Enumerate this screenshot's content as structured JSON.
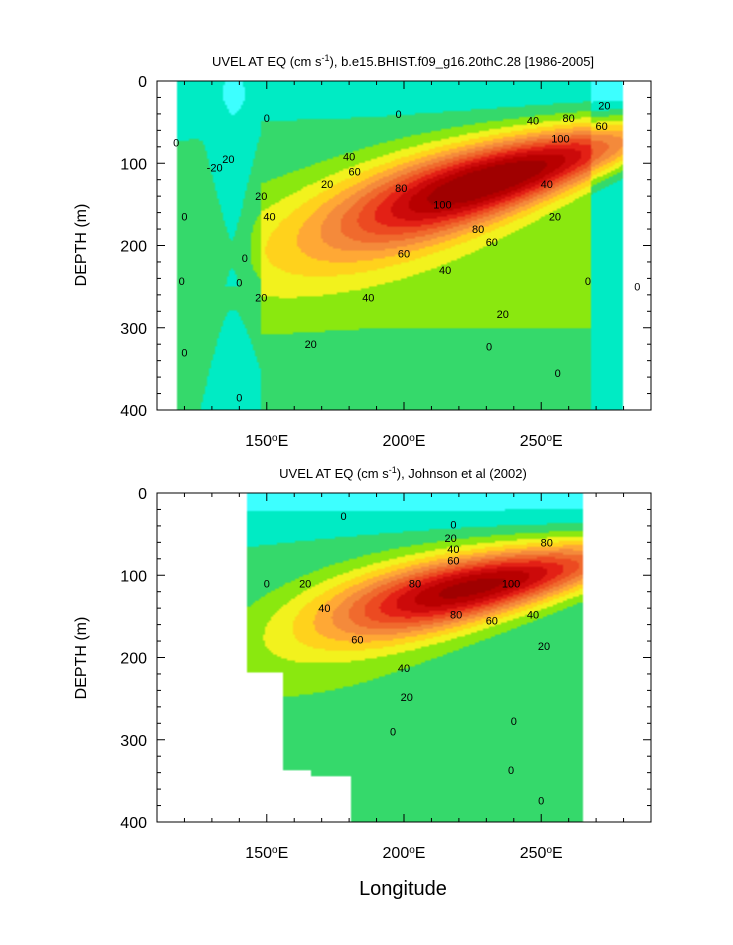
{
  "figure": {
    "xlabel": "Longitude"
  },
  "chart_data": [
    {
      "type": "contour",
      "title": "UVEL AT EQ (cm s^-1), b.e15.BHIST.f09_g16.20thC.28 [1986-2005]",
      "title_parts": [
        "UVEL AT EQ (cm s",
        "-1",
        "), b.e15.BHIST.f09_g16.20thC.28 [1986-2005]"
      ],
      "ylabel": "DEPTH (m)",
      "xlim": [
        110,
        290
      ],
      "ylim": [
        400,
        0
      ],
      "xticks": [
        {
          "v": 150,
          "t": "150"
        },
        {
          "v": 200,
          "t": "200"
        },
        {
          "v": 250,
          "t": "250"
        }
      ],
      "tick_suffix": [
        "o",
        "E"
      ],
      "yticks": [
        {
          "v": 0,
          "t": "0"
        },
        {
          "v": 100,
          "t": "100"
        },
        {
          "v": 200,
          "t": "200"
        },
        {
          "v": 300,
          "t": "300"
        },
        {
          "v": 400,
          "t": "400"
        }
      ],
      "contour_interval": 10,
      "field": {
        "x": [
          117,
          280
        ],
        "core": {
          "lon": 232,
          "depth": 120,
          "max": 120
        },
        "west_lon": 142,
        "east_lon": 272
      },
      "contour_labels": [
        {
          "lon": 136,
          "depth": 95,
          "t": "20"
        },
        {
          "lon": 148,
          "depth": 140,
          "t": "20"
        },
        {
          "lon": 151,
          "depth": 165,
          "t": "40"
        },
        {
          "lon": 148,
          "depth": 263,
          "t": "20"
        },
        {
          "lon": 172,
          "depth": 125,
          "t": "20"
        },
        {
          "lon": 180,
          "depth": 92,
          "t": "40"
        },
        {
          "lon": 182,
          "depth": 110,
          "t": "60"
        },
        {
          "lon": 199,
          "depth": 130,
          "t": "80"
        },
        {
          "lon": 214,
          "depth": 150,
          "t": "100"
        },
        {
          "lon": 200,
          "depth": 210,
          "t": "60"
        },
        {
          "lon": 187,
          "depth": 263,
          "t": "40"
        },
        {
          "lon": 215,
          "depth": 230,
          "t": "40"
        },
        {
          "lon": 227,
          "depth": 180,
          "t": "80"
        },
        {
          "lon": 232,
          "depth": 196,
          "t": "60"
        },
        {
          "lon": 252,
          "depth": 125,
          "t": "40"
        },
        {
          "lon": 236,
          "depth": 283,
          "t": "20"
        },
        {
          "lon": 255,
          "depth": 165,
          "t": "20"
        },
        {
          "lon": 247,
          "depth": 48,
          "t": "40"
        },
        {
          "lon": 260,
          "depth": 45,
          "t": "80"
        },
        {
          "lon": 257,
          "depth": 70,
          "t": "100"
        },
        {
          "lon": 272,
          "depth": 55,
          "t": "60"
        },
        {
          "lon": 273,
          "depth": 30,
          "t": "20"
        },
        {
          "lon": 166,
          "depth": 320,
          "t": "20"
        },
        {
          "lon": 198,
          "depth": 40,
          "t": "0"
        },
        {
          "lon": 150,
          "depth": 45,
          "t": "0"
        },
        {
          "lon": 117,
          "depth": 75,
          "t": "0"
        },
        {
          "lon": 120,
          "depth": 165,
          "t": "0"
        },
        {
          "lon": 119,
          "depth": 243,
          "t": "0"
        },
        {
          "lon": 120,
          "depth": 330,
          "t": "0"
        },
        {
          "lon": 140,
          "depth": 245,
          "t": "0"
        },
        {
          "lon": 140,
          "depth": 385,
          "t": "0"
        },
        {
          "lon": 142,
          "depth": 215,
          "t": "0"
        },
        {
          "lon": 231,
          "depth": 323,
          "t": "0"
        },
        {
          "lon": 267,
          "depth": 243,
          "t": "0"
        },
        {
          "lon": 285,
          "depth": 250,
          "t": "0"
        },
        {
          "lon": 131,
          "depth": 105,
          "t": "-20"
        },
        {
          "lon": 256,
          "depth": 355,
          "t": "0"
        }
      ]
    },
    {
      "type": "contour",
      "title": "UVEL AT EQ (cm s^-1), Johnson et al (2002)",
      "title_parts": [
        "UVEL AT EQ (cm s",
        "-1",
        "), Johnson et al (2002)"
      ],
      "ylabel": "DEPTH (m)",
      "xlim": [
        110,
        290
      ],
      "ylim": [
        400,
        0
      ],
      "xticks": [
        {
          "v": 150,
          "t": "150"
        },
        {
          "v": 200,
          "t": "200"
        },
        {
          "v": 250,
          "t": "250"
        }
      ],
      "tick_suffix": [
        "o",
        "E"
      ],
      "yticks": [
        {
          "v": 0,
          "t": "0"
        },
        {
          "v": 100,
          "t": "100"
        },
        {
          "v": 200,
          "t": "200"
        },
        {
          "v": 300,
          "t": "300"
        },
        {
          "v": 400,
          "t": "400"
        }
      ],
      "contour_interval": 10,
      "field": {
        "x": [
          143,
          265
        ],
        "core": {
          "lon": 225,
          "depth": 115,
          "max": 115
        },
        "west_lon": 150,
        "east_lon": 265,
        "mask": [
          {
            "lon_min": 110,
            "lon_max": 143,
            "depth_min": 0,
            "depth_max": 400
          },
          {
            "lon_min": 143,
            "lon_max": 156,
            "depth_min": 217,
            "depth_max": 400
          },
          {
            "lon_min": 156,
            "lon_max": 166,
            "depth_min": 336,
            "depth_max": 400
          },
          {
            "lon_min": 166,
            "lon_max": 181,
            "depth_min": 345,
            "depth_max": 400
          },
          {
            "lon_min": 265,
            "lon_max": 290,
            "depth_min": 0,
            "depth_max": 400
          }
        ]
      },
      "contour_labels": [
        {
          "lon": 150,
          "depth": 110,
          "t": "0"
        },
        {
          "lon": 178,
          "depth": 28,
          "t": "0"
        },
        {
          "lon": 164,
          "depth": 110,
          "t": "20"
        },
        {
          "lon": 171,
          "depth": 140,
          "t": "40"
        },
        {
          "lon": 183,
          "depth": 178,
          "t": "60"
        },
        {
          "lon": 218,
          "depth": 38,
          "t": "0"
        },
        {
          "lon": 217,
          "depth": 55,
          "t": "20"
        },
        {
          "lon": 218,
          "depth": 68,
          "t": "40"
        },
        {
          "lon": 218,
          "depth": 82,
          "t": "60"
        },
        {
          "lon": 252,
          "depth": 60,
          "t": "80"
        },
        {
          "lon": 239,
          "depth": 110,
          "t": "100"
        },
        {
          "lon": 204,
          "depth": 110,
          "t": "80"
        },
        {
          "lon": 219,
          "depth": 148,
          "t": "80"
        },
        {
          "lon": 232,
          "depth": 155,
          "t": "60"
        },
        {
          "lon": 247,
          "depth": 148,
          "t": "40"
        },
        {
          "lon": 251,
          "depth": 186,
          "t": "20"
        },
        {
          "lon": 200,
          "depth": 213,
          "t": "40"
        },
        {
          "lon": 201,
          "depth": 248,
          "t": "20"
        },
        {
          "lon": 196,
          "depth": 290,
          "t": "0"
        },
        {
          "lon": 240,
          "depth": 277,
          "t": "0"
        },
        {
          "lon": 239,
          "depth": 337,
          "t": "0"
        },
        {
          "lon": 250,
          "depth": 374,
          "t": "0"
        }
      ]
    }
  ]
}
